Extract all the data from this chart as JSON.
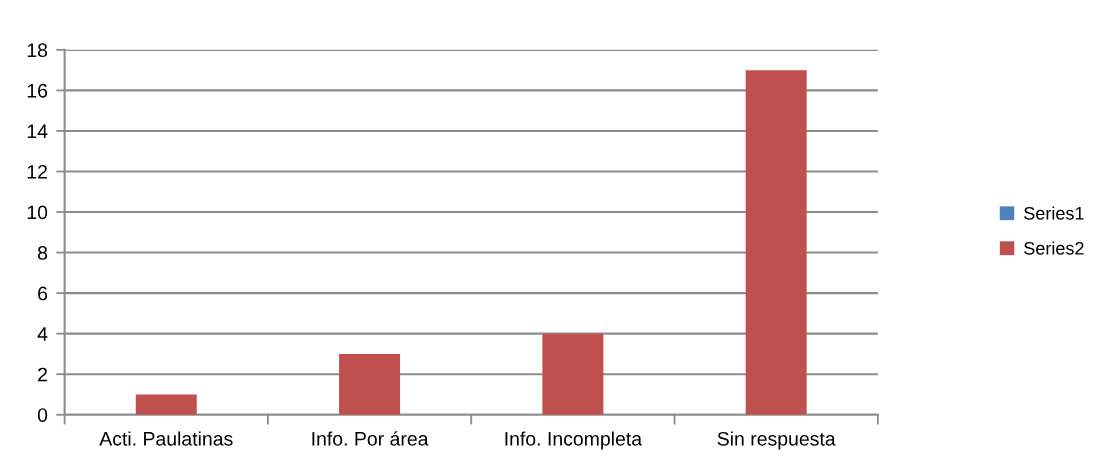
{
  "chart_data": {
    "type": "bar",
    "categories": [
      "Acti. Paulatinas",
      "Info. Por área",
      "Info. Incompleta",
      "Sin respuesta"
    ],
    "series": [
      {
        "name": "Series1",
        "color": "#4f81bd",
        "values": [
          null,
          null,
          null,
          null
        ]
      },
      {
        "name": "Series2",
        "color": "#c0504d",
        "values": [
          1,
          3,
          4,
          17
        ]
      }
    ],
    "ylim": [
      0,
      18
    ],
    "yticks": [
      0,
      2,
      4,
      6,
      8,
      10,
      12,
      14,
      16,
      18
    ],
    "grid": "y",
    "legend": "right"
  }
}
